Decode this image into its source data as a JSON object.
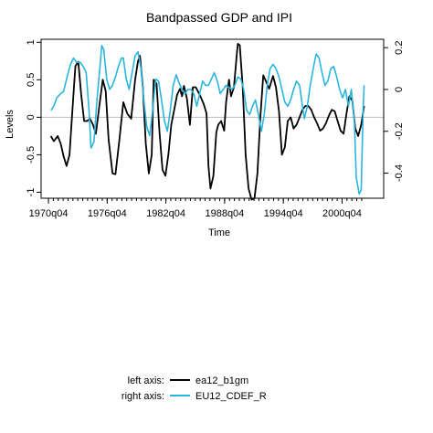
{
  "chart_data": {
    "type": "line",
    "title": "Bandpassed GDP and IPI",
    "ylabel_left": "Levels",
    "xlabel": "Time",
    "x_tick_labels": [
      "1970q04",
      "1976q04",
      "1982q04",
      "1988q04",
      "1994q04",
      "2000q04"
    ],
    "x_tick_values": [
      1970.75,
      1976.75,
      1982.75,
      1988.75,
      1994.75,
      2000.75
    ],
    "x_range": [
      1970.0,
      2005.0
    ],
    "left_axis": {
      "ylim": [
        -1.08,
        1.04
      ],
      "ticks": [
        -1,
        -0.5,
        0,
        0.5,
        1
      ],
      "tick_labels": [
        "-1",
        "-0.5",
        "0",
        "0.5",
        "1"
      ]
    },
    "right_axis": {
      "ylim": [
        -0.52,
        0.24
      ],
      "ticks": [
        -0.4,
        -0.2,
        0,
        0.2
      ],
      "tick_labels": [
        "-0.4",
        "-0.2",
        "0",
        "0.2"
      ]
    },
    "reference_line": {
      "axis": "left",
      "value": 0,
      "color": "#bbbbbb"
    },
    "legend": {
      "position": "bottom",
      "rows": [
        {
          "axis_label": "left axis:",
          "series": "ea12_b1gm"
        },
        {
          "axis_label": "right axis:",
          "series": "EU12_CDEF_R"
        }
      ]
    },
    "series": [
      {
        "name": "ea12_b1gm",
        "axis": "left",
        "color": "#000000",
        "points": [
          [
            1971.0,
            -0.25
          ],
          [
            1971.3,
            -0.32
          ],
          [
            1971.7,
            -0.25
          ],
          [
            1972.0,
            -0.35
          ],
          [
            1972.3,
            -0.52
          ],
          [
            1972.6,
            -0.65
          ],
          [
            1972.9,
            -0.5
          ],
          [
            1973.2,
            0.1
          ],
          [
            1973.5,
            0.68
          ],
          [
            1973.8,
            0.74
          ],
          [
            1974.1,
            0.3
          ],
          [
            1974.4,
            -0.05
          ],
          [
            1974.7,
            -0.05
          ],
          [
            1975.0,
            -0.02
          ],
          [
            1975.3,
            -0.1
          ],
          [
            1975.6,
            -0.22
          ],
          [
            1975.9,
            0.1
          ],
          [
            1976.3,
            0.5
          ],
          [
            1976.6,
            0.35
          ],
          [
            1976.9,
            -0.3
          ],
          [
            1977.3,
            -0.75
          ],
          [
            1977.6,
            -0.76
          ],
          [
            1978.0,
            -0.3
          ],
          [
            1978.4,
            0.2
          ],
          [
            1978.8,
            0.05
          ],
          [
            1979.2,
            -0.02
          ],
          [
            1979.6,
            0.5
          ],
          [
            1979.9,
            0.75
          ],
          [
            1980.1,
            0.82
          ],
          [
            1980.4,
            0.4
          ],
          [
            1980.7,
            -0.35
          ],
          [
            1981.0,
            -0.75
          ],
          [
            1981.3,
            -0.5
          ],
          [
            1981.5,
            0.5
          ],
          [
            1981.8,
            0.45
          ],
          [
            1982.1,
            -0.2
          ],
          [
            1982.4,
            -0.7
          ],
          [
            1982.7,
            -0.78
          ],
          [
            1983.0,
            -0.5
          ],
          [
            1983.3,
            -0.1
          ],
          [
            1983.6,
            0.1
          ],
          [
            1983.9,
            0.3
          ],
          [
            1984.2,
            0.38
          ],
          [
            1984.4,
            0.28
          ],
          [
            1984.6,
            0.42
          ],
          [
            1984.9,
            0.25
          ],
          [
            1985.2,
            -0.1
          ],
          [
            1985.5,
            0.4
          ],
          [
            1985.8,
            0.4
          ],
          [
            1986.2,
            0.3
          ],
          [
            1986.6,
            0.18
          ],
          [
            1986.9,
            0.05
          ],
          [
            1987.1,
            -0.65
          ],
          [
            1987.3,
            -0.95
          ],
          [
            1987.6,
            -0.78
          ],
          [
            1987.9,
            -0.2
          ],
          [
            1988.1,
            -0.1
          ],
          [
            1988.4,
            -0.05
          ],
          [
            1988.7,
            -0.18
          ],
          [
            1988.9,
            0.2
          ],
          [
            1989.2,
            0.5
          ],
          [
            1989.4,
            0.28
          ],
          [
            1989.7,
            0.4
          ],
          [
            1990.0,
            0.85
          ],
          [
            1990.1,
            0.98
          ],
          [
            1990.3,
            0.96
          ],
          [
            1990.6,
            0.4
          ],
          [
            1990.9,
            -0.5
          ],
          [
            1991.2,
            -0.95
          ],
          [
            1991.5,
            -1.1
          ],
          [
            1991.8,
            -1.08
          ],
          [
            1992.1,
            -0.75
          ],
          [
            1992.4,
            0.0
          ],
          [
            1992.7,
            0.56
          ],
          [
            1992.9,
            0.5
          ],
          [
            1993.3,
            0.38
          ],
          [
            1993.7,
            0.55
          ],
          [
            1994.0,
            0.4
          ],
          [
            1994.3,
            0.08
          ],
          [
            1994.6,
            -0.5
          ],
          [
            1994.9,
            -0.4
          ],
          [
            1995.2,
            -0.05
          ],
          [
            1995.5,
            0.0
          ],
          [
            1995.8,
            -0.15
          ],
          [
            1996.1,
            -0.1
          ],
          [
            1996.4,
            0.0
          ],
          [
            1996.7,
            0.1
          ],
          [
            1997.0,
            0.15
          ],
          [
            1997.3,
            0.15
          ],
          [
            1997.6,
            0.1
          ],
          [
            1997.9,
            0.0
          ],
          [
            1998.2,
            -0.08
          ],
          [
            1998.5,
            -0.18
          ],
          [
            1998.8,
            -0.15
          ],
          [
            1999.1,
            -0.08
          ],
          [
            1999.4,
            0.02
          ],
          [
            1999.7,
            0.1
          ],
          [
            2000.0,
            0.08
          ],
          [
            2000.3,
            -0.05
          ],
          [
            2000.6,
            -0.18
          ],
          [
            2000.9,
            -0.22
          ],
          [
            2001.2,
            0.05
          ],
          [
            2001.5,
            0.28
          ],
          [
            2001.8,
            0.22
          ],
          [
            2002.1,
            -0.15
          ],
          [
            2002.4,
            -0.25
          ],
          [
            2002.7,
            -0.1
          ],
          [
            2003.0,
            0.15
          ]
        ]
      },
      {
        "name": "EU12_CDEF_R",
        "axis": "right",
        "color": "#29b6de",
        "points": [
          [
            1971.0,
            -0.1
          ],
          [
            1971.3,
            -0.08
          ],
          [
            1971.6,
            -0.04
          ],
          [
            1972.0,
            -0.02
          ],
          [
            1972.3,
            -0.01
          ],
          [
            1972.6,
            0.05
          ],
          [
            1973.0,
            0.12
          ],
          [
            1973.3,
            0.15
          ],
          [
            1973.6,
            0.13
          ],
          [
            1974.0,
            0.13
          ],
          [
            1974.3,
            0.11
          ],
          [
            1974.6,
            0.08
          ],
          [
            1974.9,
            -0.1
          ],
          [
            1975.1,
            -0.28
          ],
          [
            1975.4,
            -0.25
          ],
          [
            1975.7,
            -0.05
          ],
          [
            1976.0,
            0.1
          ],
          [
            1976.2,
            0.21
          ],
          [
            1976.4,
            0.19
          ],
          [
            1976.7,
            0.05
          ],
          [
            1977.0,
            0.0
          ],
          [
            1977.3,
            0.02
          ],
          [
            1977.6,
            0.06
          ],
          [
            1977.9,
            0.11
          ],
          [
            1978.2,
            0.15
          ],
          [
            1978.4,
            0.15
          ],
          [
            1978.7,
            0.05
          ],
          [
            1979.0,
            0.0
          ],
          [
            1979.3,
            0.08
          ],
          [
            1979.6,
            0.16
          ],
          [
            1979.9,
            0.18
          ],
          [
            1980.2,
            0.1
          ],
          [
            1980.5,
            -0.05
          ],
          [
            1980.8,
            -0.18
          ],
          [
            1981.1,
            -0.22
          ],
          [
            1981.4,
            -0.1
          ],
          [
            1981.7,
            0.05
          ],
          [
            1982.0,
            0.04
          ],
          [
            1982.3,
            -0.05
          ],
          [
            1982.6,
            -0.15
          ],
          [
            1982.9,
            -0.2
          ],
          [
            1983.2,
            -0.1
          ],
          [
            1983.5,
            0.02
          ],
          [
            1983.8,
            0.07
          ],
          [
            1984.1,
            0.03
          ],
          [
            1984.4,
            0.0
          ],
          [
            1984.7,
            -0.02
          ],
          [
            1985.0,
            0.0
          ],
          [
            1985.3,
            0.0
          ],
          [
            1985.6,
            -0.02
          ],
          [
            1985.9,
            -0.08
          ],
          [
            1986.2,
            -0.02
          ],
          [
            1986.5,
            0.04
          ],
          [
            1986.8,
            0.02
          ],
          [
            1987.1,
            0.02
          ],
          [
            1987.4,
            0.05
          ],
          [
            1987.7,
            0.08
          ],
          [
            1988.0,
            0.04
          ],
          [
            1988.3,
            -0.02
          ],
          [
            1988.6,
            0.0
          ],
          [
            1988.9,
            0.02
          ],
          [
            1989.2,
            0.01
          ],
          [
            1989.5,
            0.0
          ],
          [
            1989.8,
            0.02
          ],
          [
            1990.1,
            0.06
          ],
          [
            1990.4,
            0.05
          ],
          [
            1990.7,
            0.0
          ],
          [
            1991.0,
            -0.1
          ],
          [
            1991.3,
            -0.12
          ],
          [
            1991.6,
            -0.08
          ],
          [
            1991.9,
            -0.05
          ],
          [
            1992.2,
            -0.12
          ],
          [
            1992.5,
            -0.2
          ],
          [
            1992.8,
            -0.12
          ],
          [
            1993.1,
            0.02
          ],
          [
            1993.4,
            0.1
          ],
          [
            1993.7,
            0.12
          ],
          [
            1994.0,
            0.1
          ],
          [
            1994.3,
            0.06
          ],
          [
            1994.6,
            0.0
          ],
          [
            1994.9,
            -0.06
          ],
          [
            1995.2,
            -0.08
          ],
          [
            1995.5,
            -0.05
          ],
          [
            1995.8,
            0.0
          ],
          [
            1996.1,
            0.04
          ],
          [
            1996.4,
            0.02
          ],
          [
            1996.7,
            -0.08
          ],
          [
            1996.9,
            -0.14
          ],
          [
            1997.2,
            -0.08
          ],
          [
            1997.5,
            0.02
          ],
          [
            1997.8,
            0.1
          ],
          [
            1998.1,
            0.17
          ],
          [
            1998.4,
            0.15
          ],
          [
            1998.7,
            0.08
          ],
          [
            1999.0,
            0.02
          ],
          [
            1999.3,
            0.04
          ],
          [
            1999.6,
            0.1
          ],
          [
            1999.9,
            0.11
          ],
          [
            2000.2,
            0.06
          ],
          [
            2000.5,
            0.0
          ],
          [
            2000.8,
            -0.04
          ],
          [
            2001.1,
            0.0
          ],
          [
            2001.4,
            -0.08
          ],
          [
            2001.7,
            0.0
          ],
          [
            2002.0,
            -0.15
          ],
          [
            2002.2,
            -0.42
          ],
          [
            2002.5,
            -0.5
          ],
          [
            2002.7,
            -0.48
          ],
          [
            2002.9,
            -0.1
          ],
          [
            2003.0,
            0.02
          ]
        ]
      }
    ]
  }
}
